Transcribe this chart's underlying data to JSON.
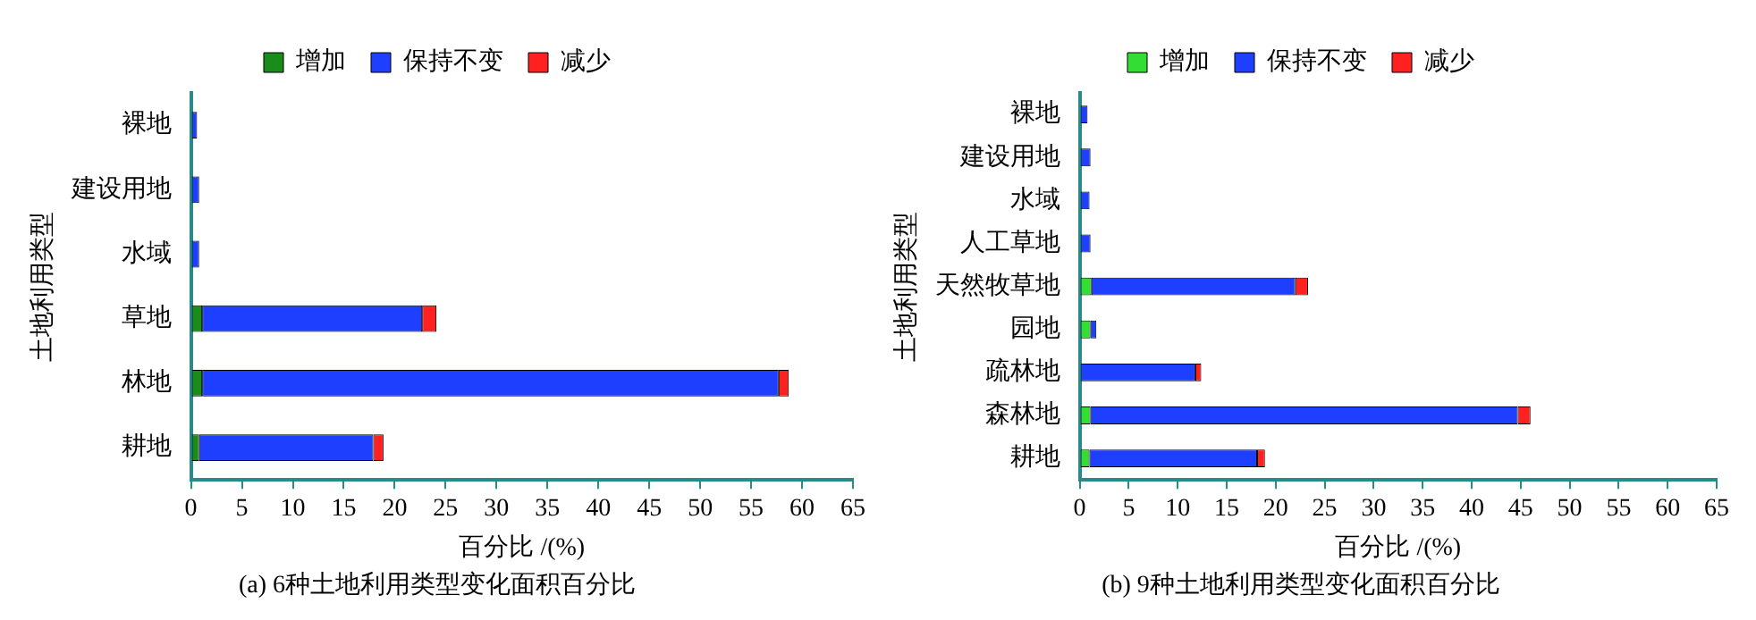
{
  "chart_data": [
    {
      "type": "bar",
      "orientation": "horizontal",
      "stacked": true,
      "title": "(a) 6种土地利用类型变化面积百分比",
      "xlabel": "百分比 /(%)",
      "ylabel": "土地利用类型",
      "categories": [
        "裸地",
        "建设用地",
        "水域",
        "草地",
        "林地",
        "耕地"
      ],
      "series": [
        {
          "name": "增加",
          "color": "#1a8c1a",
          "values": [
            0,
            0,
            0,
            1.1,
            1.1,
            0.8
          ]
        },
        {
          "name": "保持不变",
          "color": "#1f3fff",
          "values": [
            0.6,
            0.8,
            0.8,
            21.6,
            56.6,
            17.1
          ]
        },
        {
          "name": "减少",
          "color": "#ff2020",
          "values": [
            0,
            0,
            0,
            1.4,
            1.0,
            1.0
          ]
        }
      ],
      "xlim": [
        0,
        65
      ],
      "xticks": [
        0,
        5,
        10,
        15,
        20,
        25,
        30,
        35,
        40,
        45,
        50,
        55,
        60,
        65
      ],
      "legend": "top",
      "grid": false
    },
    {
      "type": "bar",
      "orientation": "horizontal",
      "stacked": true,
      "title": "(b) 9种土地利用类型变化面积百分比",
      "xlabel": "百分比 /(%)",
      "ylabel": "土地利用类型",
      "categories": [
        "裸地",
        "建设用地",
        "水域",
        "人工草地",
        "天然牧草地",
        "园地",
        "疏林地",
        "森林地",
        "耕地"
      ],
      "series": [
        {
          "name": "增加",
          "color": "#33dd33",
          "values": [
            0,
            0,
            0,
            0,
            1.2,
            1.1,
            0,
            1.1,
            1.0
          ]
        },
        {
          "name": "保持不变",
          "color": "#1f3fff",
          "values": [
            0.8,
            1.1,
            1.0,
            1.1,
            20.8,
            0.6,
            11.8,
            43.6,
            17.1
          ]
        },
        {
          "name": "减少",
          "color": "#ff2020",
          "values": [
            0,
            0,
            0,
            0,
            1.3,
            0,
            0.6,
            1.3,
            0.8
          ]
        }
      ],
      "xlim": [
        0,
        65
      ],
      "xticks": [
        0,
        5,
        10,
        15,
        20,
        25,
        30,
        35,
        40,
        45,
        50,
        55,
        60,
        65
      ],
      "legend": "top",
      "grid": false
    }
  ]
}
